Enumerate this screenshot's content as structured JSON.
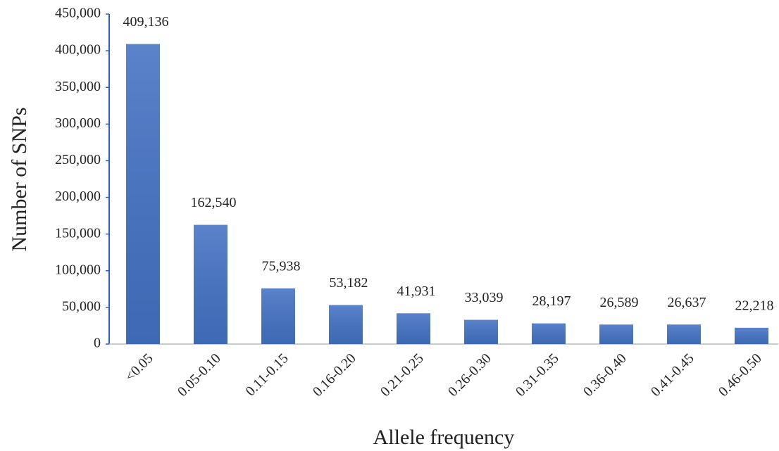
{
  "chart_data": {
    "type": "bar",
    "x_label": "Allele frequency",
    "y_label": "Number of SNPs",
    "categories": [
      "<0.05",
      "0.05-0.10",
      "0.11-0.15",
      "0.16-0.20",
      "0.21-0.25",
      "0.26-0.30",
      "0.31-0.35",
      "0.36-0.40",
      "0.41-0.45",
      "0.46-0.50"
    ],
    "values": [
      409136,
      162540,
      75938,
      53182,
      41931,
      33039,
      28197,
      26589,
      26637,
      22218
    ],
    "value_labels": [
      "409,136",
      "162,540",
      "75,938",
      "53,182",
      "41,931",
      "33,039",
      "28,197",
      "26,589",
      "26,637",
      "22,218"
    ],
    "color": "#4472c4",
    "ylim": [
      0,
      450000
    ],
    "yticks": [
      0,
      {
        "value": 50000,
        "label": "50,000"
      },
      {
        "value": 100000,
        "label": "100,000"
      },
      {
        "value": 150000,
        "label": "150,000"
      },
      {
        "value": 200000,
        "label": "200,000"
      },
      {
        "value": 250000,
        "label": "250,000"
      },
      {
        "value": 300000,
        "label": "300,000"
      },
      {
        "value": 350000,
        "label": "350,000"
      },
      {
        "value": 400000,
        "label": "400,000"
      },
      {
        "value": 450000,
        "label": "450,000"
      }
    ],
    "grid": false
  }
}
